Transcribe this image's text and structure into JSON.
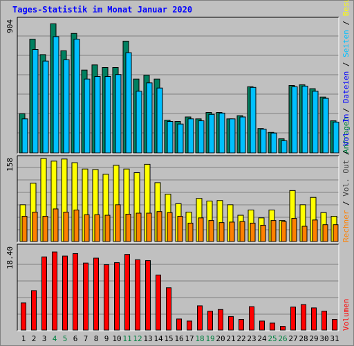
{
  "title": "Tages-Statistik im Monat Januar 2020",
  "colors": {
    "background": "#c0c0c0",
    "title": "#0000ff",
    "gridline": "#808080",
    "weekend_label": "#008040",
    "weekday_label": "#000000"
  },
  "chart_data": [
    {
      "type": "bar",
      "panel": "requests",
      "y_tick_label": "904",
      "ylim": [
        0,
        1050
      ],
      "categories": [
        "1",
        "2",
        "3",
        "4",
        "5",
        "6",
        "7",
        "8",
        "9",
        "10",
        "11",
        "12",
        "13",
        "14",
        "15",
        "16",
        "17",
        "18",
        "19",
        "20",
        "21",
        "22",
        "23",
        "24",
        "25",
        "26",
        "27",
        "28",
        "29",
        "30",
        "31"
      ],
      "weekend_days": [
        "4",
        "5",
        "11",
        "12",
        "18",
        "19",
        "25",
        "26"
      ],
      "right_labels": [
        {
          "text": "Anfragen",
          "color": "#008040"
        },
        {
          "text": " / ",
          "color": "#000000"
        },
        {
          "text": "Dateien",
          "color": "#0000ff"
        },
        {
          "text": " / ",
          "color": "#000000"
        },
        {
          "text": "Seiten",
          "color": "#00c0ff"
        },
        {
          "text": " / ",
          "color": "#000000"
        },
        {
          "text": "Besuche",
          "color": "#ffff00"
        }
      ],
      "series": [
        {
          "name": "Anfragen",
          "color": "#008060",
          "values": [
            305,
            885,
            765,
            1005,
            795,
            930,
            645,
            685,
            665,
            665,
            870,
            575,
            605,
            575,
            255,
            245,
            280,
            265,
            315,
            315,
            265,
            290,
            515,
            190,
            160,
            110,
            525,
            530,
            500,
            435,
            250
          ]
        },
        {
          "name": "Dateien",
          "color": "#00c0ff",
          "values": [
            265,
            805,
            715,
            905,
            725,
            885,
            575,
            595,
            595,
            610,
            780,
            480,
            545,
            505,
            245,
            225,
            265,
            250,
            300,
            310,
            265,
            280,
            510,
            185,
            155,
            95,
            515,
            520,
            480,
            425,
            240
          ]
        }
      ]
    },
    {
      "type": "bar",
      "panel": "visits",
      "y_tick_label": "158",
      "ylim": [
        0,
        162
      ],
      "right_labels": [
        {
          "text": "Rechner",
          "color": "#ff8000"
        },
        {
          "text": " / ",
          "color": "#000000"
        },
        {
          "text": "Vol. Out",
          "color": "#404040"
        },
        {
          "text": " / ",
          "color": "#000000"
        },
        {
          "text": "Vol. In",
          "color": "#0000ff"
        }
      ],
      "series": [
        {
          "name": "Besuche",
          "color": "#ffff00",
          "values": [
            70,
            111,
            158,
            153,
            157,
            150,
            138,
            137,
            128,
            145,
            138,
            131,
            147,
            112,
            90,
            72,
            56,
            82,
            77,
            78,
            70,
            50,
            60,
            45,
            60,
            40,
            97,
            70,
            84,
            55,
            48
          ]
        },
        {
          "name": "Rechner",
          "color": "#ff8000",
          "values": [
            48,
            56,
            48,
            62,
            56,
            60,
            51,
            51,
            50,
            70,
            52,
            54,
            54,
            57,
            55,
            48,
            35,
            45,
            40,
            36,
            37,
            38,
            35,
            31,
            40,
            38,
            44,
            29,
            41,
            32,
            32
          ]
        }
      ]
    },
    {
      "type": "bar",
      "panel": "volume",
      "y_tick_label": "18.40",
      "ylim": [
        0,
        20.7
      ],
      "right_labels": [
        {
          "text": "Volumen",
          "color": "#ff0000"
        }
      ],
      "series": [
        {
          "name": "Volumen",
          "color": "#ff0000",
          "values": [
            6.6,
            9.6,
            17.8,
            19.0,
            18.0,
            18.6,
            16.3,
            17.5,
            15.9,
            16.4,
            18.4,
            17.1,
            16.9,
            13.4,
            10.3,
            2.7,
            2.2,
            5.9,
            4.6,
            5.0,
            3.3,
            2.6,
            5.7,
            2.2,
            1.7,
            0.9,
            5.6,
            6.2,
            5.4,
            4.6,
            2.6
          ]
        }
      ]
    }
  ]
}
